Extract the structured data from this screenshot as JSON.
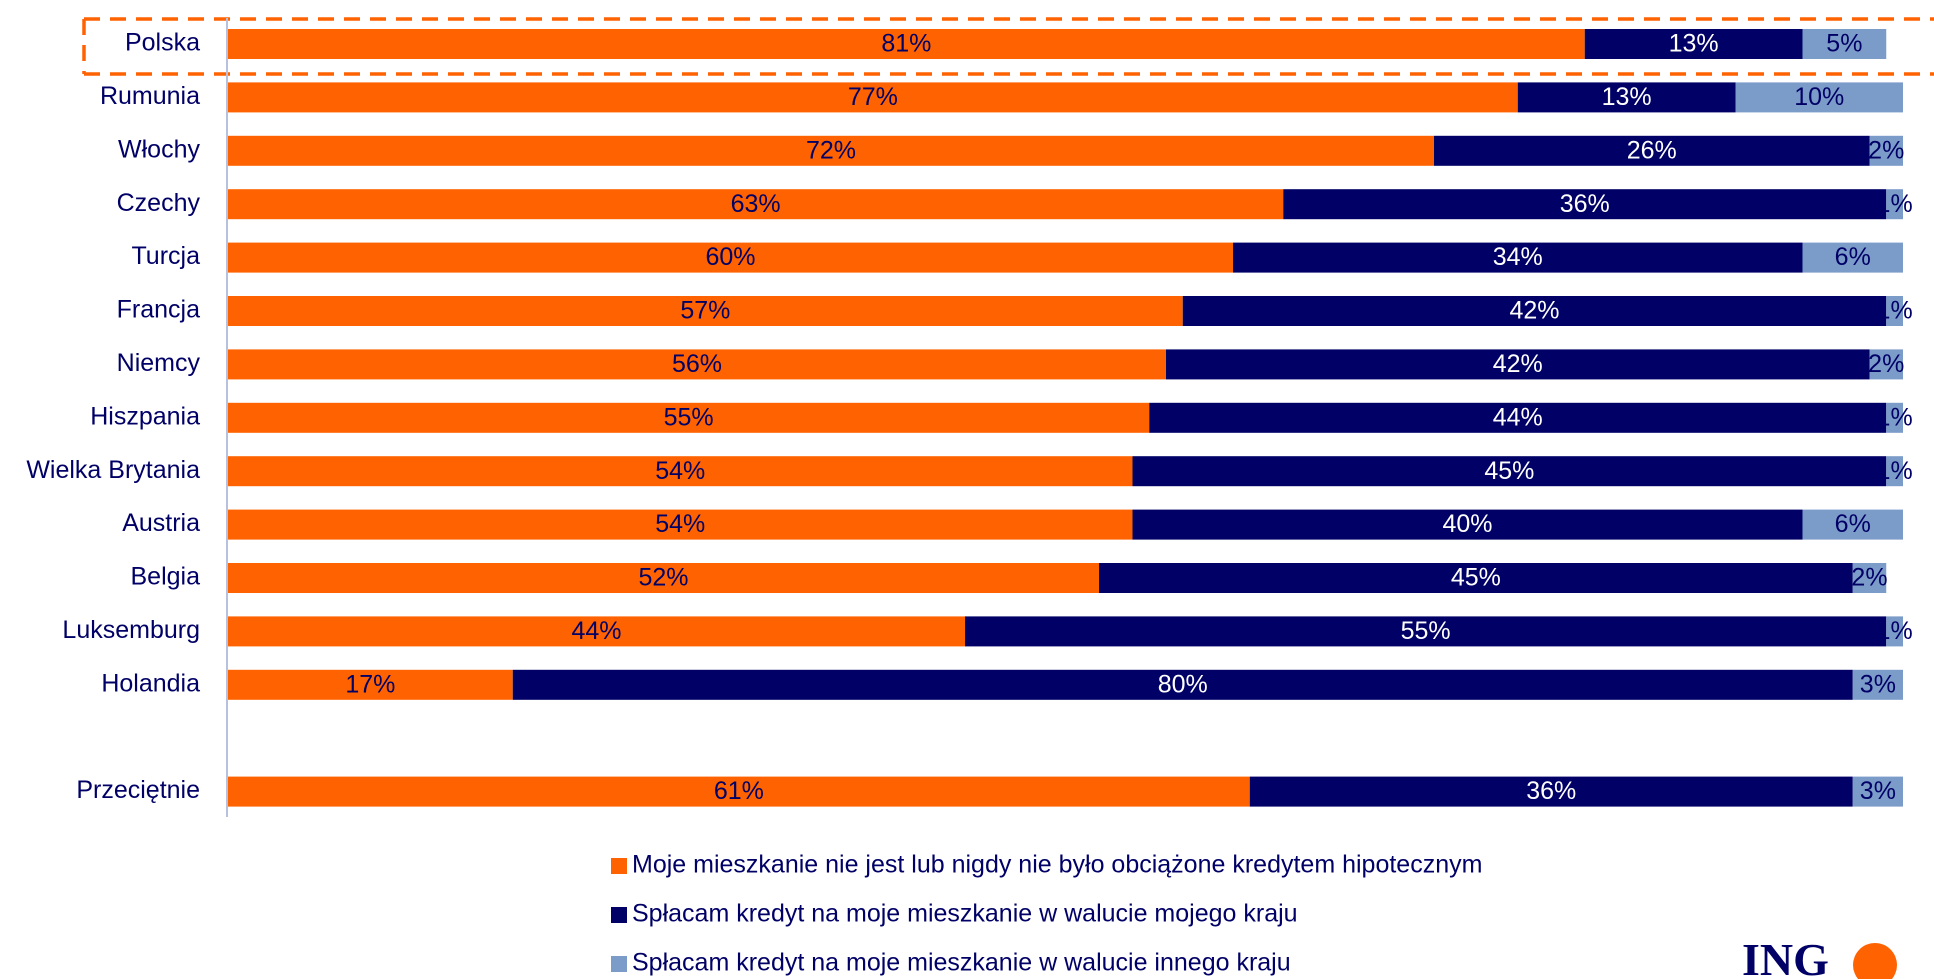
{
  "chart_data": {
    "type": "stacked-bar-horizontal",
    "categories": [
      "Polska",
      "Rumunia",
      "Włochy",
      "Czechy",
      "Turcja",
      "Francja",
      "Niemcy",
      "Hiszpania",
      "Wielka Brytania",
      "Austria",
      "Belgia",
      "Luksemburg",
      "Holandia",
      null,
      "Przeciętnie"
    ],
    "xlim": [
      0,
      100
    ],
    "series": [
      {
        "name": "Moje mieszkanie nie jest lub nigdy nie było obciążone kredytem hipotecznym",
        "color": "#ff6200",
        "values": [
          81,
          77,
          72,
          63,
          60,
          57,
          56,
          55,
          54,
          54,
          52,
          44,
          17,
          null,
          61
        ],
        "value_labels": [
          "81%",
          "77%",
          "72%",
          "63%",
          "60%",
          "57%",
          "56%",
          "55%",
          "54%",
          "54%",
          "52%",
          "44%",
          "17%",
          null,
          "61%"
        ]
      },
      {
        "name": "Spłacam kredyt na moje mieszkanie w walucie mojego kraju",
        "color": "#000066",
        "values": [
          13,
          13,
          26,
          36,
          34,
          42,
          42,
          44,
          45,
          40,
          45,
          55,
          80,
          null,
          36
        ],
        "value_labels": [
          "13%",
          "13%",
          "26%",
          "36%",
          "34%",
          "42%",
          "42%",
          "44%",
          "45%",
          "40%",
          "45%",
          "55%",
          "80%",
          null,
          "36%"
        ]
      },
      {
        "name": "Spłacam kredyt na moje mieszkanie w walucie innego kraju",
        "color": "#7b9bc9",
        "values": [
          5,
          10,
          2,
          1,
          6,
          1,
          2,
          1,
          1,
          6,
          2,
          1,
          3,
          null,
          3
        ],
        "value_labels": [
          "5%",
          "10%",
          "2%",
          "1%",
          "6%",
          "1%",
          "2%",
          "1%",
          "1%",
          "6%",
          "2%",
          "1%",
          "3%",
          null,
          "3%"
        ]
      }
    ],
    "logo": "ING"
  }
}
